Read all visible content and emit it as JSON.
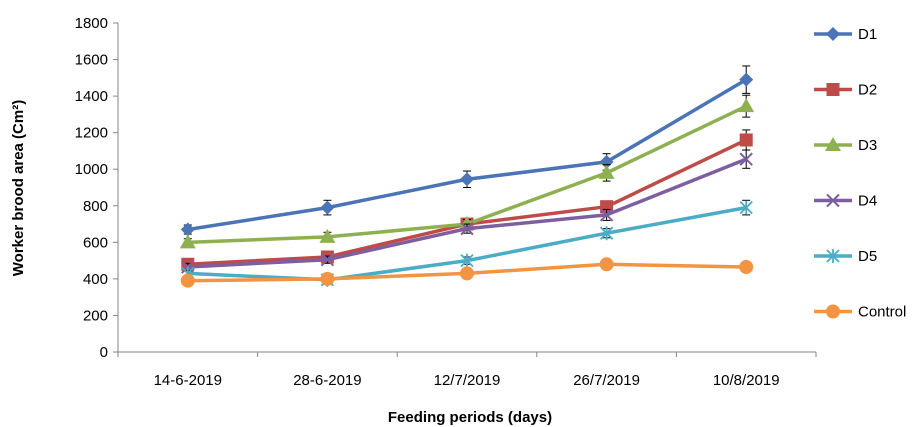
{
  "chart_data": {
    "type": "line",
    "title": "",
    "xlabel": "Feeding periods (days)",
    "ylabel": "Worker brood area (Cm²)",
    "categories": [
      "14-6-2019",
      "28-6-2019",
      "12/7/2019",
      "26/7/2019",
      "10/8/2019"
    ],
    "ylim": [
      0,
      1800
    ],
    "yticks": [
      "0",
      "200",
      "400",
      "600",
      "800",
      "1000",
      "1200",
      "1400",
      "1600",
      "1800"
    ],
    "grid": false,
    "legend_position": "right",
    "series": [
      {
        "name": "D1",
        "color": "#4A74B5",
        "marker": "diamond",
        "values": [
          670,
          790,
          945,
          1040,
          1490
        ],
        "errors": [
          25,
          40,
          45,
          45,
          75
        ]
      },
      {
        "name": "D2",
        "color": "#BE4B48",
        "marker": "square",
        "values": [
          480,
          520,
          700,
          795,
          1160
        ],
        "errors": [
          20,
          20,
          25,
          30,
          55
        ]
      },
      {
        "name": "D3",
        "color": "#8FB051",
        "marker": "triangle",
        "values": [
          600,
          630,
          700,
          980,
          1345
        ],
        "errors": [
          20,
          25,
          25,
          45,
          60
        ]
      },
      {
        "name": "D4",
        "color": "#7D5FA0",
        "marker": "x",
        "values": [
          465,
          505,
          675,
          750,
          1055
        ],
        "errors": [
          20,
          20,
          25,
          30,
          50
        ]
      },
      {
        "name": "D5",
        "color": "#4BACC6",
        "marker": "star",
        "values": [
          430,
          395,
          500,
          650,
          790
        ],
        "errors": [
          15,
          15,
          20,
          25,
          40
        ]
      },
      {
        "name": "Control",
        "color": "#F29441",
        "marker": "circle",
        "values": [
          390,
          400,
          430,
          480,
          465
        ],
        "errors": [
          10,
          10,
          15,
          15,
          15
        ]
      }
    ]
  }
}
